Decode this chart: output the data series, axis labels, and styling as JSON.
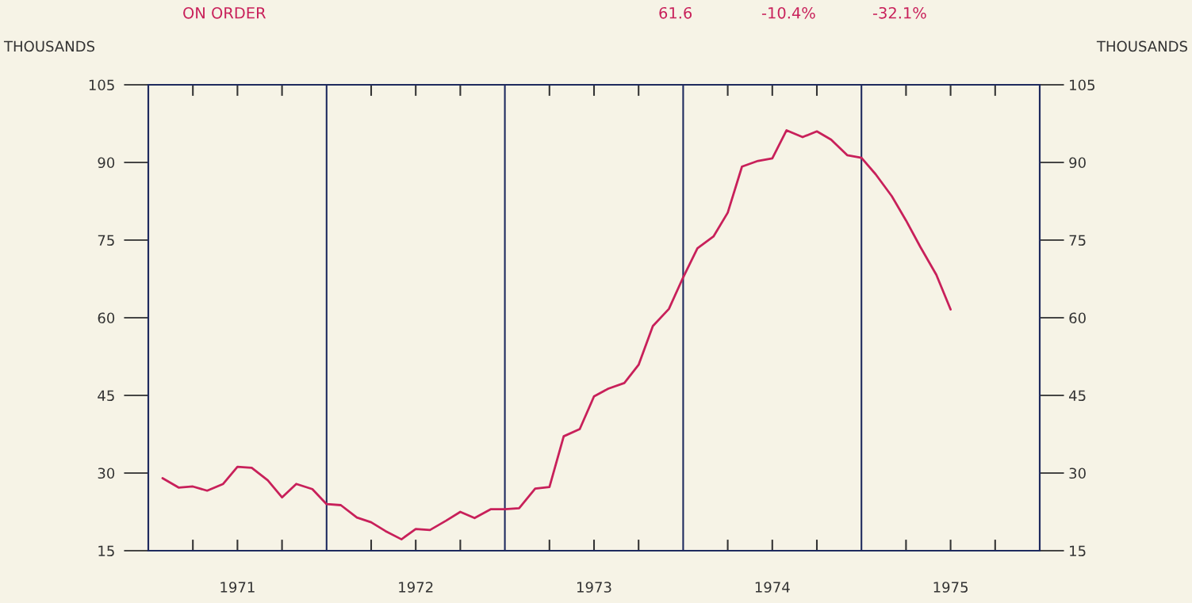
{
  "chart_data": {
    "type": "line",
    "annotations": [
      "ON ORDER",
      "61.6",
      "-10.4%",
      "-32.1%"
    ],
    "ylabel": "THOUSANDS",
    "y2label": "THOUSANDS",
    "x": [
      1971.08,
      1971.17,
      1971.25,
      1971.33,
      1971.42,
      1971.5,
      1971.58,
      1971.67,
      1971.75,
      1971.83,
      1971.92,
      1972.0,
      1972.08,
      1972.17,
      1972.25,
      1972.33,
      1972.42,
      1972.5,
      1972.58,
      1972.67,
      1972.75,
      1972.83,
      1972.92,
      1973.0,
      1973.08,
      1973.17,
      1973.25,
      1973.33,
      1973.42,
      1973.5,
      1973.58,
      1973.67,
      1973.75,
      1973.83,
      1973.92,
      1974.0,
      1974.08,
      1974.17,
      1974.25,
      1974.33,
      1974.42,
      1974.5,
      1974.58,
      1974.67,
      1974.75,
      1974.83,
      1974.92,
      1975.0,
      1975.08,
      1975.17,
      1975.25,
      1975.33,
      1975.42,
      1975.5
    ],
    "series": [
      {
        "color": "#c8205a",
        "values": [
          29.0,
          27.2,
          27.4,
          26.6,
          27.9,
          31.2,
          31.0,
          28.6,
          25.3,
          27.9,
          26.9,
          24.0,
          23.8,
          21.4,
          20.5,
          18.8,
          17.2,
          19.2,
          19.0,
          20.8,
          22.5,
          21.3,
          23.0,
          23.0,
          23.2,
          27.0,
          27.3,
          37.1,
          38.5,
          44.8,
          46.3,
          47.4,
          50.9,
          58.4,
          61.7,
          67.8,
          73.4,
          75.7,
          80.3,
          89.2,
          90.3,
          90.8,
          96.2,
          94.9,
          96.0,
          94.4,
          91.4,
          90.9,
          87.7,
          83.5,
          78.8,
          73.7,
          68.3,
          61.6
        ]
      }
    ],
    "xlim": [
      1971,
      1976
    ],
    "xticks": [
      {
        "value": 1971.5,
        "label": "1971"
      },
      {
        "value": 1972.5,
        "label": "1972"
      },
      {
        "value": 1973.5,
        "label": "1973"
      },
      {
        "value": 1974.5,
        "label": "1974"
      },
      {
        "value": 1975.5,
        "label": "1975"
      },
      {
        "value": 1971.25,
        "label": null
      },
      {
        "value": 1971.75,
        "label": null
      },
      {
        "value": 1972.25,
        "label": null
      },
      {
        "value": 1972.75,
        "label": null
      },
      {
        "value": 1973.25,
        "label": null
      },
      {
        "value": 1973.75,
        "label": null
      },
      {
        "value": 1974.25,
        "label": null
      },
      {
        "value": 1974.75,
        "label": null
      },
      {
        "value": 1975.25,
        "label": null
      },
      {
        "value": 1975.75,
        "label": null
      }
    ],
    "ylim": [
      15,
      105
    ],
    "yticks": [
      15,
      30,
      45,
      60,
      75,
      90,
      105
    ],
    "y2lim": [
      15,
      105
    ],
    "y2ticks": [
      15,
      30,
      45,
      60,
      75,
      90,
      105
    ],
    "ref_lines": [
      {
        "axis": "x",
        "value": 1972,
        "label": null,
        "color": "#1e2a5e"
      },
      {
        "axis": "x",
        "value": 1973,
        "label": null,
        "color": "#1e2a5e"
      },
      {
        "axis": "x",
        "value": 1974,
        "label": null,
        "color": "#1e2a5e"
      },
      {
        "axis": "x",
        "value": 1975,
        "label": null,
        "color": "#1e2a5e"
      }
    ],
    "grid": false,
    "legend": false,
    "marker": "none",
    "line_style": "solid"
  }
}
